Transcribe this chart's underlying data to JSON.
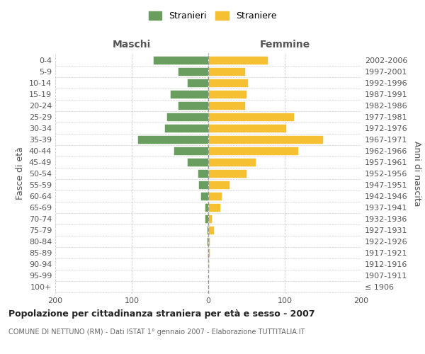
{
  "age_groups": [
    "100+",
    "95-99",
    "90-94",
    "85-89",
    "80-84",
    "75-79",
    "70-74",
    "65-69",
    "60-64",
    "55-59",
    "50-54",
    "45-49",
    "40-44",
    "35-39",
    "30-34",
    "25-29",
    "20-24",
    "15-19",
    "10-14",
    "5-9",
    "0-4"
  ],
  "birth_years": [
    "≤ 1906",
    "1907-1911",
    "1912-1916",
    "1917-1921",
    "1922-1926",
    "1927-1931",
    "1932-1936",
    "1937-1941",
    "1942-1946",
    "1947-1951",
    "1952-1956",
    "1957-1961",
    "1962-1966",
    "1967-1971",
    "1972-1976",
    "1977-1981",
    "1982-1986",
    "1987-1991",
    "1992-1996",
    "1997-2001",
    "2002-2006"
  ],
  "maschi": [
    0,
    0,
    0,
    1,
    2,
    2,
    5,
    5,
    10,
    13,
    14,
    28,
    45,
    93,
    57,
    55,
    40,
    50,
    28,
    40,
    72
  ],
  "femmine": [
    0,
    0,
    1,
    2,
    2,
    7,
    5,
    16,
    18,
    28,
    50,
    62,
    118,
    150,
    102,
    112,
    48,
    50,
    52,
    48,
    78
  ],
  "maschi_color": "#6a9e5e",
  "femmine_color": "#f5c032",
  "title": "Popolazione per cittadinanza straniera per età e sesso - 2007",
  "subtitle": "COMUNE DI NETTUNO (RM) - Dati ISTAT 1° gennaio 2007 - Elaborazione TUTTITALIA.IT",
  "xlabel_left": "Maschi",
  "xlabel_right": "Femmine",
  "ylabel_left": "Fasce di età",
  "ylabel_right": "Anni di nascita",
  "xlim": [
    -200,
    200
  ],
  "xticks": [
    -200,
    -100,
    0,
    100,
    200
  ],
  "legend_stranieri": "Stranieri",
  "legend_straniere": "Straniere",
  "background_color": "#ffffff",
  "grid_color": "#cccccc",
  "title_fontsize": 9,
  "subtitle_fontsize": 7,
  "tick_fontsize": 8,
  "bar_height": 0.75
}
